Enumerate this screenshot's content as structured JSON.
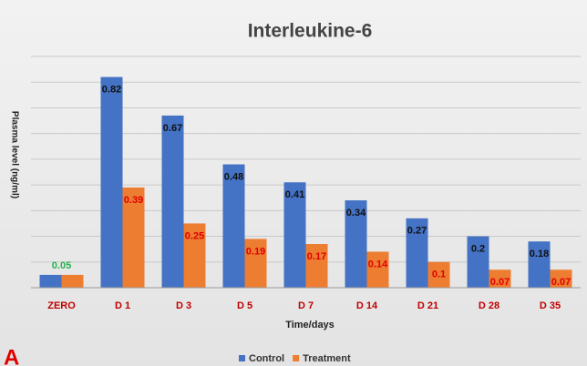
{
  "chart_data": {
    "type": "bar",
    "title": "Interleukine-6",
    "x_label": "Time/days",
    "y_label": "Plasma level (ng/ml)",
    "categories": [
      "ZERO",
      "D 1",
      "D 3",
      "D 5",
      "D 7",
      "D 14",
      "D 21",
      "D 28",
      "D 35"
    ],
    "category_color": "#c00000",
    "series": [
      {
        "name": "Control",
        "color": "#4472c4",
        "values": [
          0.05,
          0.82,
          0.67,
          0.48,
          0.41,
          0.34,
          0.27,
          0.2,
          0.18
        ],
        "label_colors": [
          "#22b14c",
          "#111111",
          "#111111",
          "#111111",
          "#111111",
          "#111111",
          "#111111",
          "#111111",
          "#111111"
        ]
      },
      {
        "name": "Treatment",
        "color": "#ed7d31",
        "values": [
          0.05,
          0.39,
          0.25,
          0.19,
          0.17,
          0.14,
          0.1,
          0.07,
          0.07
        ],
        "label_colors": [
          null,
          "#e00000",
          "#e00000",
          "#e00000",
          "#e00000",
          "#e00000",
          "#e00000",
          "#e00000",
          "#e00000"
        ]
      }
    ],
    "ylim": [
      0,
      0.9
    ],
    "yticks": [
      0,
      0.1,
      0.2,
      0.3,
      0.4,
      0.5,
      0.6,
      0.7,
      0.8,
      0.9
    ],
    "grid": true,
    "legend": "bottom",
    "panel_label": "A"
  }
}
